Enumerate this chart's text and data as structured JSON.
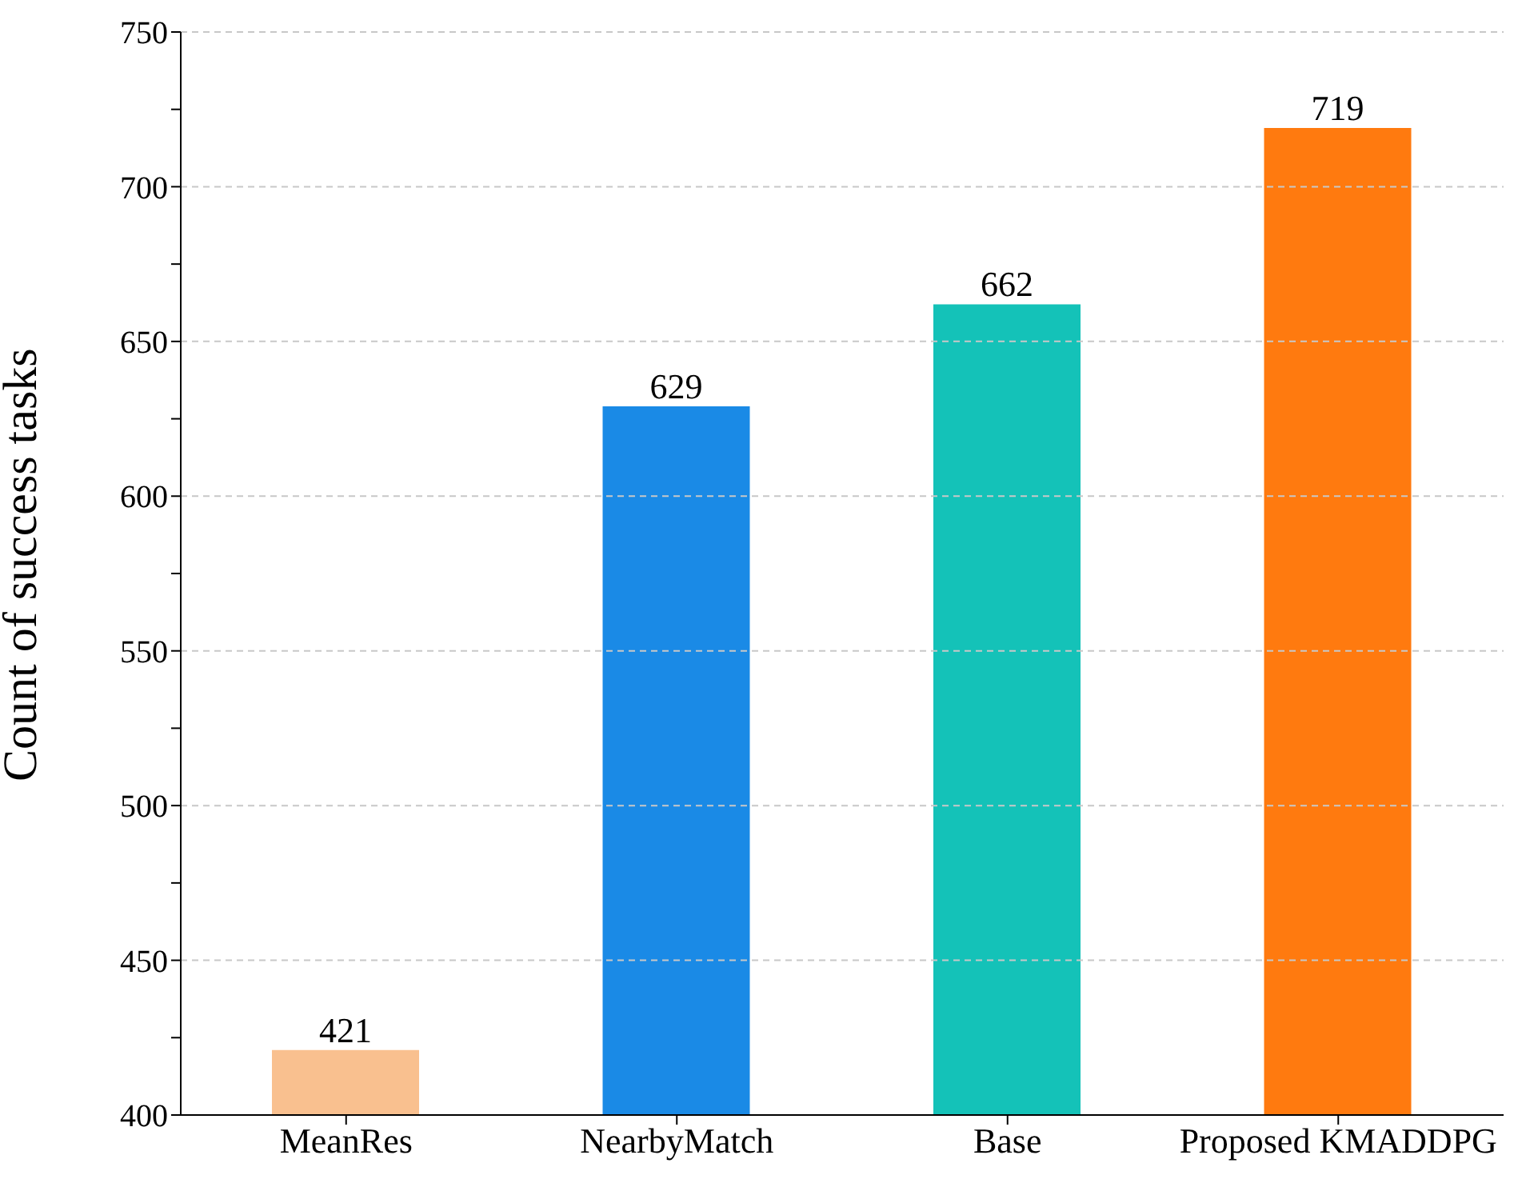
{
  "chart_data": {
    "type": "bar",
    "ylabel": "Count of success tasks",
    "categories": [
      "MeanRes",
      "NearbyMatch",
      "Base",
      "Proposed KMADDPG"
    ],
    "values": [
      421,
      629,
      662,
      719
    ],
    "colors": [
      "#f9c08f",
      "#1a8ae6",
      "#14c2b8",
      "#ff7a0f"
    ],
    "ylim": [
      400,
      750
    ],
    "yticks": [
      400,
      {
        "value": 425,
        "label": null
      },
      450,
      {
        "value": 475,
        "label": null
      },
      500,
      {
        "value": 525,
        "label": null
      },
      550,
      {
        "value": 575,
        "label": null
      },
      600,
      {
        "value": 625,
        "label": null
      },
      650,
      {
        "value": 675,
        "label": null
      },
      700,
      {
        "value": 725,
        "label": null
      },
      750
    ],
    "grid": "y",
    "data_labels": true
  }
}
